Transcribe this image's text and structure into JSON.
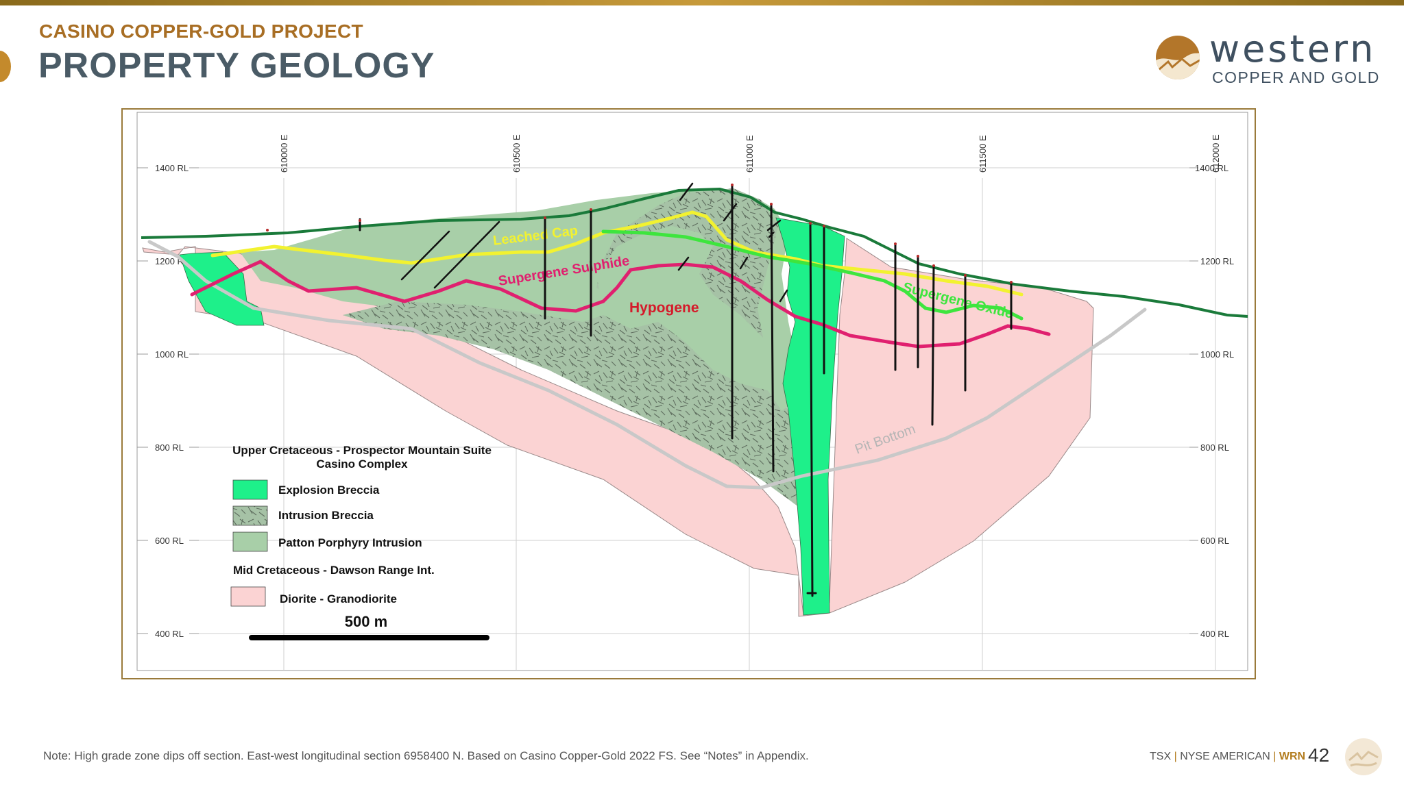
{
  "header": {
    "subtitle": "CASINO COPPER-GOLD PROJECT",
    "title": "PROPERTY GEOLOGY"
  },
  "logo": {
    "word": "western",
    "sub": "COPPER AND GOLD"
  },
  "section": {
    "eastings": [
      "610000 E",
      "610500 E",
      "611000 E",
      "611500 E",
      "612000 E"
    ],
    "elevations": [
      "1400 RL",
      "1200 RL",
      "1000 RL",
      "800 RL",
      "600 RL",
      "400 RL"
    ],
    "zones": {
      "leached_cap": "Leached Cap",
      "supergene_sulphide": "Supergene Sulphide",
      "hypogene": "Hypogene",
      "supergene_oxide": "Supergene Oxide",
      "pit_bottom": "Pit Bottom"
    },
    "colors": {
      "explosion_breccia": "#1ef08a",
      "intrusion_breccia": "#9db79d",
      "patton_porphyry": "#a8cfa8",
      "diorite": "#fbd3d3",
      "leached_cap_line": "#f2f230",
      "supergene_sulphide_line": "#e0206f",
      "supergene_oxide_line": "#3ee53e",
      "topography_line": "#1a7a3a",
      "pit_line": "#c8c8c8"
    }
  },
  "legend": {
    "group1_line1": "Upper Cretaceous - Prospector Mountain Suite",
    "group1_line2": "Casino Complex",
    "items1": [
      "Explosion Breccia",
      "Intrusion Breccia",
      "Patton Porphyry Intrusion"
    ],
    "group2": "Mid Cretaceous - Dawson Range Int.",
    "items2": [
      "Diorite - Granodiorite"
    ],
    "scale": "500 m"
  },
  "footer": {
    "note": "Note:  High grade zone dips off section. East-west longitudinal section 6958400 N.  Based on Casino Copper-Gold 2022 FS.  See “Notes” in Appendix.",
    "ticker1": "TSX",
    "sep": "|",
    "ticker2": "NYSE AMERICAN",
    "ticker3": "WRN",
    "page": "42"
  }
}
